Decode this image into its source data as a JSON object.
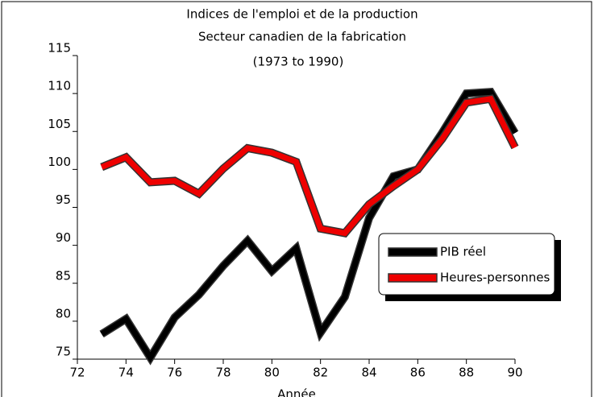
{
  "chart_data": {
    "type": "line",
    "title": "Indices de l'emploi et de la production",
    "subtitle": "Secteur canadien de la fabrication",
    "period": "(1973 to 1990)",
    "x_label": "Année",
    "x": [
      73,
      74,
      75,
      76,
      77,
      78,
      79,
      80,
      81,
      82,
      83,
      84,
      85,
      86,
      87,
      88,
      89,
      90
    ],
    "series": [
      {
        "name": "PIB réel",
        "color": "#000000",
        "values": [
          78.3,
          80.3,
          75.2,
          80.5,
          83.5,
          87.3,
          90.6,
          86.6,
          89.6,
          78.5,
          83.2,
          93.6,
          99.1,
          100.0,
          104.8,
          110.0,
          110.2,
          104.8
        ]
      },
      {
        "name": "Heures-personnes",
        "color": "#ee0000",
        "values": [
          100.3,
          101.6,
          98.3,
          98.5,
          96.8,
          100.1,
          102.8,
          102.2,
          101.0,
          92.2,
          91.6,
          95.4,
          97.8,
          100.0,
          104.0,
          108.8,
          109.3,
          102.9
        ]
      }
    ],
    "xlim": [
      72,
      90
    ],
    "xticks": [
      72,
      74,
      76,
      78,
      80,
      82,
      84,
      86,
      88,
      90
    ],
    "ylim": [
      75,
      115
    ],
    "yticks": [
      75,
      80,
      85,
      90,
      95,
      100,
      105,
      110,
      115
    ],
    "legend": "right"
  }
}
